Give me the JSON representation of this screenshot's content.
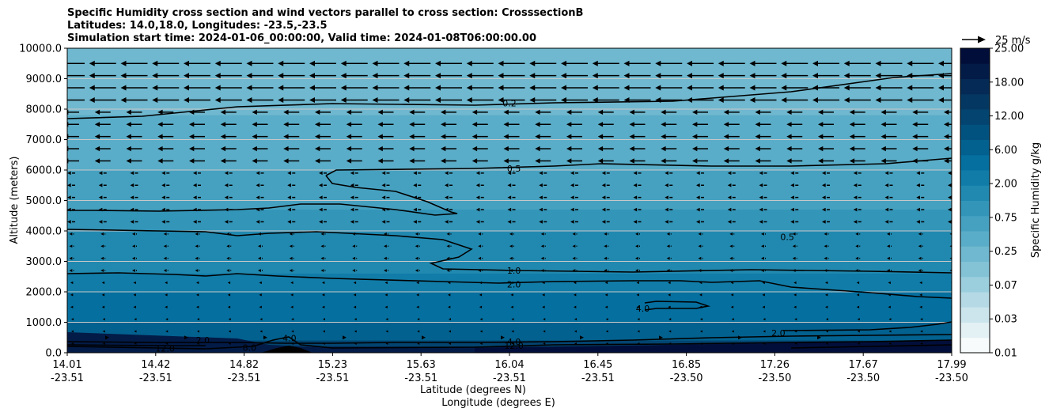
{
  "chart_data": {
    "type": "contourf",
    "title_lines": [
      "Specific Humidity cross section and wind vectors parallel to cross section: CrosssectionB",
      "Latitudes: 14.0,18.0, Longitudes: -23.5,-23.5",
      "Simulation start time: 2024-01-06_00:00:00, Valid time: 2024-01-08T06:00:00.00"
    ],
    "ylabel": "Altitude (meters)",
    "xlabel_lat": "Latitude (degrees N)",
    "xlabel_lon": "Longitude (degrees E)",
    "ylim": [
      0,
      10000
    ],
    "y_ticks": [
      "0.0",
      "1000.0",
      "2000.0",
      "3000.0",
      "4000.0",
      "5000.0",
      "6000.0",
      "7000.0",
      "8000.0",
      "9000.0",
      "10000.0"
    ],
    "x_ticks": [
      {
        "lat": "14.01",
        "lon": "-23.51"
      },
      {
        "lat": "14.42",
        "lon": "-23.51"
      },
      {
        "lat": "14.82",
        "lon": "-23.51"
      },
      {
        "lat": "15.23",
        "lon": "-23.51"
      },
      {
        "lat": "15.63",
        "lon": "-23.51"
      },
      {
        "lat": "16.04",
        "lon": "-23.51"
      },
      {
        "lat": "16.45",
        "lon": "-23.51"
      },
      {
        "lat": "16.85",
        "lon": "-23.50"
      },
      {
        "lat": "17.26",
        "lon": "-23.50"
      },
      {
        "lat": "17.67",
        "lon": "-23.50"
      },
      {
        "lat": "17.99",
        "lon": "-23.50"
      }
    ],
    "colorbar": {
      "label": "Specific Humidity g/kg",
      "tick_labels": [
        "0.01",
        "0.03",
        "0.07",
        "0.25",
        "0.75",
        "2.00",
        "6.00",
        "12.00",
        "18.00",
        "25.00"
      ],
      "colors": [
        "#f7fbfc",
        "#e3f0f4",
        "#cce5ec",
        "#b5dae5",
        "#9bcfdd",
        "#84c3d6",
        "#6fb8cf",
        "#5aadc8",
        "#46a1c0",
        "#3395b8",
        "#2189b0",
        "#117ca8",
        "#056f9f",
        "#03618f",
        "#02527f",
        "#034470",
        "#043862",
        "#042a55",
        "#031b47",
        "#020e3a"
      ]
    },
    "humidity_layers": [
      {
        "top_m": 10000,
        "color": "#6fb8cf"
      },
      {
        "top_m": 7800,
        "color": "#5aadc8"
      },
      {
        "top_m": 6000,
        "color": "#46a1c0"
      },
      {
        "top_m": 4700,
        "color": "#3395b8"
      },
      {
        "top_m": 4000,
        "color": "#2189b0"
      },
      {
        "top_m": 2600,
        "color": "#117ca8"
      },
      {
        "top_m": 2000,
        "color": "#056f9f"
      },
      {
        "top_m": 1000,
        "color": "#03618f"
      },
      {
        "top_m": 400,
        "color": "#034470"
      },
      {
        "top_m": 200,
        "color": "#031b47"
      }
    ],
    "contour_labels": [
      {
        "text": "0.2",
        "x": 16.0,
        "y": 8200
      },
      {
        "text": "0.5",
        "x": 16.02,
        "y": 6050
      },
      {
        "text": "0.5",
        "x": 17.25,
        "y": 3800
      },
      {
        "text": "1.0",
        "x": 16.02,
        "y": 2700
      },
      {
        "text": "2.0",
        "x": 16.02,
        "y": 2250
      },
      {
        "text": "4.0",
        "x": 16.6,
        "y": 1450
      },
      {
        "text": "2.0",
        "x": 17.21,
        "y": 650
      },
      {
        "text": "4.0",
        "x": 16.02,
        "y": 370
      },
      {
        "text": "12.0",
        "x": 16.02,
        "y": 230
      },
      {
        "text": "2.0",
        "x": 14.62,
        "y": 420
      },
      {
        "text": "8.0",
        "x": 14.83,
        "y": 170
      },
      {
        "text": "12.0",
        "x": 14.45,
        "y": 140
      },
      {
        "text": "4.0",
        "x": 15.01,
        "y": 480
      }
    ],
    "wind_reference": {
      "label": "25 m/s",
      "speed_ms": 25
    },
    "wind_direction": "westward (parallel to cross section)"
  }
}
